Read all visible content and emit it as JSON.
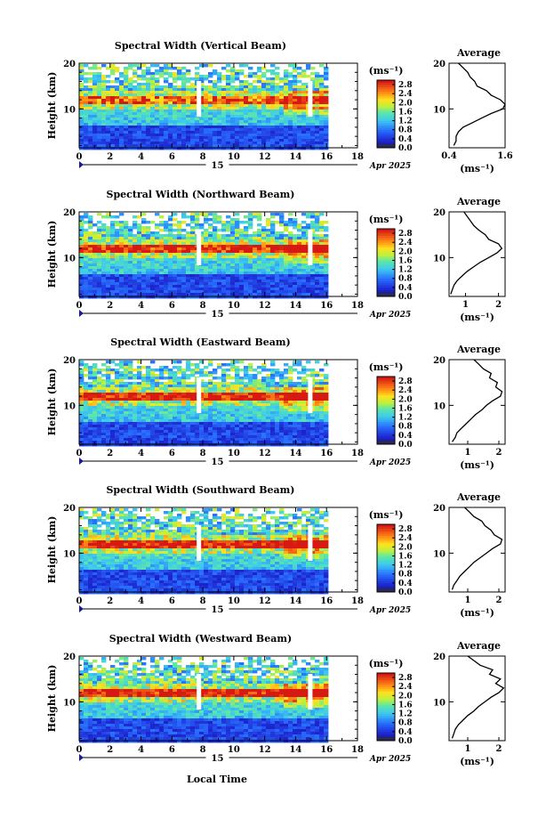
{
  "figure": {
    "xlabel": "Local Time",
    "date_label": "Apr 2025",
    "day_label": "15"
  },
  "chart_data": [
    {
      "type": "heatmap",
      "title": "Spectral Width (Vertical Beam)",
      "ylabel": "Height (km)",
      "xlim": [
        0,
        18
      ],
      "ylim": [
        1.5,
        20
      ],
      "xticks": [
        0,
        2,
        4,
        6,
        8,
        10,
        12,
        14,
        16,
        18
      ],
      "xtick_labels": [
        "0",
        "2",
        "4",
        "6",
        "8",
        "10",
        "12",
        "14",
        "16",
        "18"
      ],
      "yticks": [
        10,
        20
      ],
      "ytick_labels": [
        "10",
        "20"
      ],
      "data_extent_hours": [
        0,
        16
      ],
      "colorbar": {
        "unit": "(ms⁻¹)",
        "range": [
          0,
          3.0
        ],
        "tick_values": [
          0.0,
          0.4,
          0.8,
          1.2,
          1.6,
          2.0,
          2.4,
          2.8
        ],
        "tick_labels": [
          "0.0",
          "0.4",
          "0.8",
          "1.2",
          "1.6",
          "2.0",
          "2.4",
          "2.8"
        ]
      },
      "profile": {
        "title": "Average",
        "xlabel": "(ms⁻¹)",
        "xlim": [
          0.4,
          1.6
        ],
        "xticks": [
          0.4,
          1.6
        ],
        "xtick_labels": [
          "0.4",
          "1.6"
        ],
        "points": [
          [
            0.5,
            2
          ],
          [
            0.55,
            3
          ],
          [
            0.55,
            4
          ],
          [
            0.6,
            5
          ],
          [
            0.7,
            6
          ],
          [
            0.9,
            7
          ],
          [
            1.1,
            8
          ],
          [
            1.3,
            9
          ],
          [
            1.55,
            10
          ],
          [
            1.6,
            11
          ],
          [
            1.5,
            12
          ],
          [
            1.3,
            13
          ],
          [
            1.2,
            14
          ],
          [
            1.0,
            15
          ],
          [
            0.95,
            16
          ],
          [
            0.85,
            17
          ],
          [
            0.8,
            18
          ],
          [
            0.7,
            19
          ],
          [
            0.6,
            20
          ]
        ]
      }
    },
    {
      "type": "heatmap",
      "title": "Spectral Width (Northward Beam)",
      "ylabel": "Height (km)",
      "xlim": [
        0,
        18
      ],
      "ylim": [
        1.5,
        20
      ],
      "xticks": [
        0,
        2,
        4,
        6,
        8,
        10,
        12,
        14,
        16,
        18
      ],
      "xtick_labels": [
        "0",
        "2",
        "4",
        "6",
        "8",
        "10",
        "12",
        "14",
        "16",
        "18"
      ],
      "yticks": [
        10,
        20
      ],
      "ytick_labels": [
        "10",
        "20"
      ],
      "data_extent_hours": [
        0,
        16
      ],
      "colorbar": {
        "unit": "(ms⁻¹)",
        "range": [
          0,
          3.0
        ],
        "tick_values": [
          0.0,
          0.4,
          0.8,
          1.2,
          1.6,
          2.0,
          2.4,
          2.8
        ],
        "tick_labels": [
          "0.0",
          "0.4",
          "0.8",
          "1.2",
          "1.6",
          "2.0",
          "2.4",
          "2.8"
        ]
      },
      "profile": {
        "title": "Average",
        "xlabel": "(ms⁻¹)",
        "xlim": [
          0.5,
          2.2
        ],
        "xticks": [
          1,
          2
        ],
        "xtick_labels": [
          "1",
          "2"
        ],
        "points": [
          [
            0.55,
            2
          ],
          [
            0.6,
            3
          ],
          [
            0.65,
            4
          ],
          [
            0.75,
            5
          ],
          [
            0.9,
            6
          ],
          [
            1.05,
            7
          ],
          [
            1.25,
            8
          ],
          [
            1.45,
            9
          ],
          [
            1.7,
            10
          ],
          [
            1.95,
            11
          ],
          [
            2.1,
            12
          ],
          [
            2.0,
            13
          ],
          [
            1.7,
            14
          ],
          [
            1.6,
            15
          ],
          [
            1.4,
            16
          ],
          [
            1.25,
            17
          ],
          [
            1.15,
            18
          ],
          [
            1.05,
            19
          ],
          [
            0.95,
            20
          ]
        ]
      }
    },
    {
      "type": "heatmap",
      "title": "Spectral Width (Eastward Beam)",
      "ylabel": "Height (km)",
      "xlim": [
        0,
        18
      ],
      "ylim": [
        1.5,
        20
      ],
      "xticks": [
        0,
        2,
        4,
        6,
        8,
        10,
        12,
        14,
        16,
        18
      ],
      "xtick_labels": [
        "0",
        "2",
        "4",
        "6",
        "8",
        "10",
        "12",
        "14",
        "16",
        "18"
      ],
      "yticks": [
        10,
        20
      ],
      "ytick_labels": [
        "10",
        "20"
      ],
      "data_extent_hours": [
        0,
        16
      ],
      "colorbar": {
        "unit": "(ms⁻¹)",
        "range": [
          0,
          3.0
        ],
        "tick_values": [
          0.0,
          0.4,
          0.8,
          1.2,
          1.6,
          2.0,
          2.4,
          2.8
        ],
        "tick_labels": [
          "0.0",
          "0.4",
          "0.8",
          "1.2",
          "1.6",
          "2.0",
          "2.4",
          "2.8"
        ]
      },
      "profile": {
        "title": "Average",
        "xlabel": "(ms⁻¹)",
        "xlim": [
          0.4,
          2.2
        ],
        "xticks": [
          1,
          2
        ],
        "xtick_labels": [
          "1",
          "2"
        ],
        "points": [
          [
            0.5,
            2
          ],
          [
            0.6,
            3
          ],
          [
            0.65,
            4
          ],
          [
            0.8,
            5
          ],
          [
            0.95,
            6
          ],
          [
            1.1,
            7
          ],
          [
            1.25,
            8
          ],
          [
            1.45,
            9
          ],
          [
            1.6,
            10
          ],
          [
            1.8,
            11
          ],
          [
            2.05,
            12
          ],
          [
            2.1,
            13
          ],
          [
            1.9,
            14
          ],
          [
            1.95,
            15
          ],
          [
            1.7,
            16
          ],
          [
            1.75,
            17
          ],
          [
            1.5,
            18
          ],
          [
            1.35,
            19
          ],
          [
            1.2,
            20
          ]
        ]
      }
    },
    {
      "type": "heatmap",
      "title": "Spectral Width (Southward Beam)",
      "ylabel": "Height (km)",
      "xlim": [
        0,
        18
      ],
      "ylim": [
        1.5,
        20
      ],
      "xticks": [
        0,
        2,
        4,
        6,
        8,
        10,
        12,
        14,
        16,
        18
      ],
      "xtick_labels": [
        "0",
        "2",
        "4",
        "6",
        "8",
        "10",
        "12",
        "14",
        "16",
        "18"
      ],
      "yticks": [
        10,
        20
      ],
      "ytick_labels": [
        "10",
        "20"
      ],
      "data_extent_hours": [
        0,
        16
      ],
      "colorbar": {
        "unit": "(ms⁻¹)",
        "range": [
          0,
          3.0
        ],
        "tick_values": [
          0.0,
          0.4,
          0.8,
          1.2,
          1.6,
          2.0,
          2.4,
          2.8
        ],
        "tick_labels": [
          "0.0",
          "0.4",
          "0.8",
          "1.2",
          "1.6",
          "2.0",
          "2.4",
          "2.8"
        ]
      },
      "profile": {
        "title": "Average",
        "xlabel": "(ms⁻¹)",
        "xlim": [
          0.4,
          2.2
        ],
        "xticks": [
          1,
          2
        ],
        "xtick_labels": [
          "1",
          "2"
        ],
        "points": [
          [
            0.5,
            2
          ],
          [
            0.55,
            3
          ],
          [
            0.65,
            4
          ],
          [
            0.75,
            5
          ],
          [
            0.9,
            6
          ],
          [
            1.05,
            7
          ],
          [
            1.2,
            8
          ],
          [
            1.4,
            9
          ],
          [
            1.6,
            10
          ],
          [
            1.8,
            11
          ],
          [
            2.05,
            12
          ],
          [
            2.1,
            13
          ],
          [
            1.85,
            14
          ],
          [
            1.75,
            15
          ],
          [
            1.55,
            16
          ],
          [
            1.45,
            17
          ],
          [
            1.2,
            18
          ],
          [
            1.05,
            19
          ],
          [
            0.9,
            20
          ]
        ]
      }
    },
    {
      "type": "heatmap",
      "title": "Spectral Width (Westward Beam)",
      "ylabel": "Height (km)",
      "xlim": [
        0,
        18
      ],
      "ylim": [
        1.5,
        20
      ],
      "xticks": [
        0,
        2,
        4,
        6,
        8,
        10,
        12,
        14,
        16,
        18
      ],
      "xtick_labels": [
        "0",
        "2",
        "4",
        "6",
        "8",
        "10",
        "12",
        "14",
        "16",
        "18"
      ],
      "yticks": [
        10,
        20
      ],
      "ytick_labels": [
        "10",
        "20"
      ],
      "data_extent_hours": [
        0,
        16
      ],
      "colorbar": {
        "unit": "(ms⁻¹)",
        "range": [
          0,
          3.0
        ],
        "tick_values": [
          0.0,
          0.4,
          0.8,
          1.2,
          1.6,
          2.0,
          2.4,
          2.8
        ],
        "tick_labels": [
          "0.0",
          "0.4",
          "0.8",
          "1.2",
          "1.6",
          "2.0",
          "2.4",
          "2.8"
        ]
      },
      "profile": {
        "title": "Average",
        "xlabel": "(ms⁻¹)",
        "xlim": [
          0.4,
          2.2
        ],
        "xticks": [
          1,
          2
        ],
        "xtick_labels": [
          "1",
          "2"
        ],
        "points": [
          [
            0.5,
            2
          ],
          [
            0.55,
            3
          ],
          [
            0.6,
            4
          ],
          [
            0.7,
            5
          ],
          [
            0.85,
            6
          ],
          [
            1.0,
            7
          ],
          [
            1.2,
            8
          ],
          [
            1.35,
            9
          ],
          [
            1.55,
            10
          ],
          [
            1.75,
            11
          ],
          [
            2.0,
            12
          ],
          [
            2.15,
            13
          ],
          [
            1.9,
            14
          ],
          [
            2.05,
            15
          ],
          [
            1.7,
            16
          ],
          [
            1.8,
            17
          ],
          [
            1.4,
            18
          ],
          [
            1.2,
            19
          ],
          [
            1.0,
            20
          ]
        ]
      }
    }
  ]
}
